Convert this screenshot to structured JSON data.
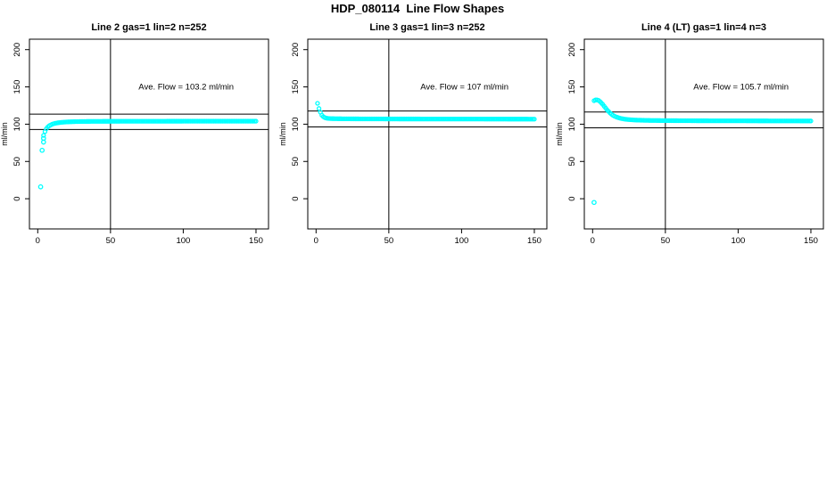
{
  "page": {
    "title": "HDP_080114  Line Flow Shapes"
  },
  "style": {
    "series_color": "#00FFFF",
    "axis_color": "#000000",
    "background": "#FFFFFF"
  },
  "chart_data": [
    {
      "type": "scatter",
      "title": "Line 2 gas=1 lin=2 n=252",
      "annotation": "Ave. Flow =  103.2  ml/min",
      "ave_flow_ml_min": 103.2,
      "ylabel": "ml/min",
      "xticks": [
        0,
        50,
        100,
        150
      ],
      "yticks": [
        0,
        50,
        100,
        150,
        200
      ],
      "xlim": [
        -5.7,
        158.6
      ],
      "ylim": [
        -40.5,
        214
      ],
      "vline_x": 50,
      "hlines": [
        113.5,
        92.9
      ],
      "marker": "open-circle",
      "curve": [
        [
          4,
          85
        ],
        [
          5,
          90
        ],
        [
          6,
          94
        ],
        [
          7,
          96.5
        ],
        [
          8,
          98
        ],
        [
          9,
          99
        ],
        [
          10,
          100
        ],
        [
          12,
          101.2
        ],
        [
          14,
          101.9
        ],
        [
          16,
          102.4
        ],
        [
          18,
          102.7
        ],
        [
          20,
          103
        ],
        [
          25,
          103.4
        ],
        [
          30,
          103.6
        ],
        [
          40,
          103.8
        ],
        [
          60,
          103.9
        ],
        [
          100,
          104
        ],
        [
          150,
          104
        ]
      ],
      "isolated_points": [
        [
          2,
          16
        ],
        [
          3,
          65
        ],
        [
          4,
          76
        ],
        [
          4,
          81
        ]
      ]
    },
    {
      "type": "scatter",
      "title": "Line 3 gas=1 lin=3 n=252",
      "annotation": "Ave. Flow =  107  ml/min",
      "ave_flow_ml_min": 107,
      "ylabel": "ml/min",
      "xticks": [
        0,
        50,
        100,
        150
      ],
      "yticks": [
        0,
        50,
        100,
        150,
        200
      ],
      "xlim": [
        -5.7,
        158.6
      ],
      "ylim": [
        -40.5,
        214
      ],
      "vline_x": 50,
      "hlines": [
        117.7,
        96.3
      ],
      "marker": "open-circle",
      "curve": [
        [
          1,
          128
        ],
        [
          2,
          121
        ],
        [
          3,
          116
        ],
        [
          4,
          112
        ],
        [
          5,
          110
        ],
        [
          6,
          108.8
        ],
        [
          7,
          108.2
        ],
        [
          8,
          107.8
        ],
        [
          10,
          107.5
        ],
        [
          15,
          107.3
        ],
        [
          20,
          107.2
        ],
        [
          30,
          107.1
        ],
        [
          50,
          107
        ],
        [
          100,
          106.9
        ],
        [
          150,
          106.8
        ]
      ],
      "isolated_points": []
    },
    {
      "type": "scatter",
      "title": "Line 4 (LT) gas=1 lin=4 n=3",
      "annotation": "Ave. Flow =  105.7  ml/min",
      "ave_flow_ml_min": 105.7,
      "ylabel": "ml/min",
      "xticks": [
        0,
        50,
        100,
        150
      ],
      "yticks": [
        0,
        50,
        100,
        150,
        200
      ],
      "xlim": [
        -5.7,
        158.6
      ],
      "ylim": [
        -40.5,
        214
      ],
      "vline_x": 50,
      "hlines": [
        116.3,
        95.1
      ],
      "marker": "open-circle",
      "curve": [
        [
          1,
          131.5
        ],
        [
          2,
          132.5
        ],
        [
          3,
          132.5
        ],
        [
          4,
          132
        ],
        [
          5,
          130.5
        ],
        [
          6,
          128.5
        ],
        [
          7,
          126.5
        ],
        [
          8,
          124
        ],
        [
          9,
          121.5
        ],
        [
          10,
          119
        ],
        [
          11,
          117
        ],
        [
          12,
          115
        ],
        [
          13,
          113.3
        ],
        [
          14,
          111.8
        ],
        [
          15,
          110.8
        ],
        [
          16,
          109.9
        ],
        [
          17,
          109.2
        ],
        [
          18,
          108.5
        ],
        [
          19,
          108
        ],
        [
          20,
          107.5
        ],
        [
          22,
          106.8
        ],
        [
          24,
          106.3
        ],
        [
          26,
          106
        ],
        [
          28,
          105.7
        ],
        [
          30,
          105.5
        ],
        [
          35,
          105.2
        ],
        [
          40,
          105
        ],
        [
          50,
          104.8
        ],
        [
          70,
          104.6
        ],
        [
          100,
          104.5
        ],
        [
          150,
          104.3
        ]
      ],
      "isolated_points": [
        [
          1,
          -5
        ]
      ]
    }
  ]
}
